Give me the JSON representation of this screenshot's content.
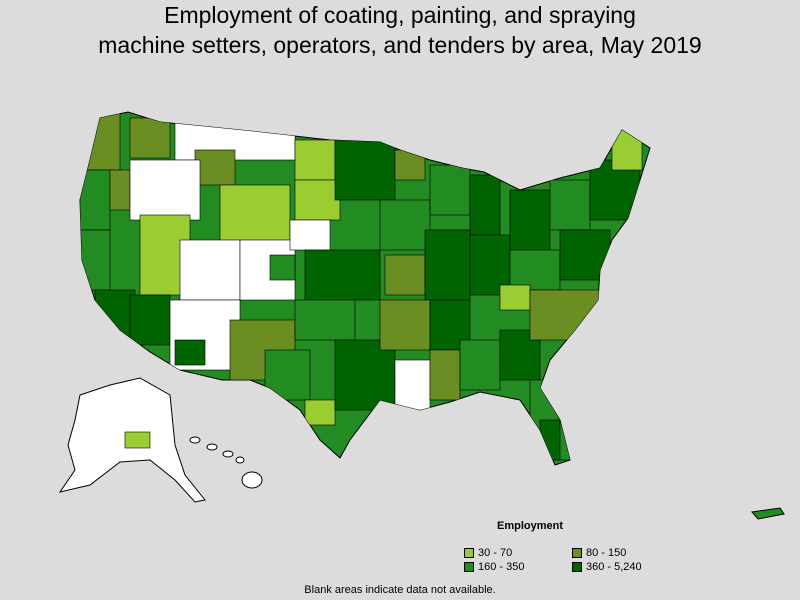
{
  "title": {
    "line1": "Employment of coating, painting, and spraying",
    "line2": "machine setters, operators, and tenders by area, May 2019"
  },
  "legend": {
    "title": "Employment",
    "items": [
      {
        "label": "30 - 70",
        "color": "#9acd32"
      },
      {
        "label": "80 - 150",
        "color": "#6b8e23"
      },
      {
        "label": "160 - 350",
        "color": "#228b22"
      },
      {
        "label": "360 - 5,240",
        "color": "#006400"
      }
    ]
  },
  "footnote": "Blank areas indicate data not available.",
  "colors": {
    "background": "#dcdcdc",
    "no_data": "#ffffff",
    "border": "#000000"
  }
}
